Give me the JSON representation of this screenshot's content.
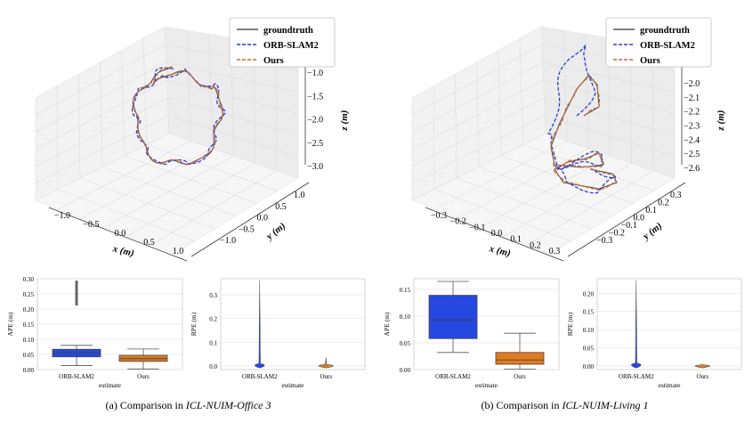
{
  "chart_data": [
    {
      "id": "a",
      "caption_prefix": "(a) Comparison in ",
      "caption_dataset": "ICL-NUIM-Office 3",
      "trajectory": {
        "type": "line3d",
        "legend": [
          "groundtruth",
          "ORB-SLAM2",
          "Ours"
        ],
        "xlabel": "x (m)",
        "ylabel": "y (m)",
        "zlabel": "z (m)",
        "xticks": [
          "−1.0",
          "−0.5",
          "0.0",
          "0.5",
          "1.0"
        ],
        "yticks": [
          "−1.0",
          "−0.5",
          "0.0",
          "0.5",
          "1.0"
        ],
        "zticks": [
          "−1.0",
          "−1.5",
          "−2.0",
          "−2.5",
          "−3.0"
        ]
      },
      "ape": {
        "type": "boxplot",
        "ylabel": "APE (m)",
        "xlabel": "estimate",
        "categories": [
          "ORB-SLAM2",
          "Ours"
        ],
        "yticks": [
          "0.00",
          "0.05",
          "0.10",
          "0.15",
          "0.20",
          "0.25",
          "0.30"
        ],
        "ylim": [
          0,
          0.3
        ],
        "boxes": [
          {
            "name": "ORB-SLAM2",
            "whislo": 0.013,
            "q1": 0.042,
            "med": 0.055,
            "q3": 0.067,
            "whishi": 0.08,
            "outliers": [
              0.215,
              0.29
            ]
          },
          {
            "name": "Ours",
            "whislo": 0.002,
            "q1": 0.027,
            "med": 0.036,
            "q3": 0.047,
            "whishi": 0.068,
            "outliers": []
          }
        ]
      },
      "rpe": {
        "type": "violin",
        "ylabel": "RPE (m)",
        "xlabel": "estimate",
        "categories": [
          "ORB-SLAM2",
          "Ours"
        ],
        "yticks": [
          "0.0",
          "0.1",
          "0.2",
          "0.3"
        ],
        "ylim": [
          0,
          0.36
        ],
        "violins": [
          {
            "name": "ORB-SLAM2",
            "max": 0.36,
            "body": 0.01
          },
          {
            "name": "Ours",
            "max": 0.035,
            "body": 0.006
          }
        ]
      }
    },
    {
      "id": "b",
      "caption_prefix": "(b) Comparison in ",
      "caption_dataset": "ICL-NUIM-Living 1",
      "trajectory": {
        "type": "line3d",
        "legend": [
          "groundtruth",
          "ORB-SLAM2",
          "Ours"
        ],
        "xlabel": "x (m)",
        "ylabel": "y (m)",
        "zlabel": "z (m)",
        "xticks": [
          "−0.3",
          "−0.2",
          "−0.1",
          "0.0",
          "0.1",
          "0.2",
          "0.3"
        ],
        "yticks": [
          "−0.3",
          "−0.2",
          "−0.1",
          "0.0",
          "0.1",
          "0.2",
          "0.3"
        ],
        "zticks": [
          "−2.0",
          "−2.1",
          "−2.2",
          "−2.3",
          "−2.4",
          "−2.5",
          "−2.6"
        ]
      },
      "ape": {
        "type": "boxplot",
        "ylabel": "APE (m)",
        "xlabel": "estimate",
        "categories": [
          "ORB-SLAM2",
          "Ours"
        ],
        "yticks": [
          "0.00",
          "0.05",
          "0.10",
          "0.15"
        ],
        "ylim": [
          0,
          0.17
        ],
        "boxes": [
          {
            "name": "ORB-SLAM2",
            "whislo": 0.032,
            "q1": 0.058,
            "med": 0.093,
            "q3": 0.139,
            "whishi": 0.165,
            "outliers": []
          },
          {
            "name": "Ours",
            "whislo": 0.001,
            "q1": 0.01,
            "med": 0.018,
            "q3": 0.032,
            "whishi": 0.068,
            "outliers": []
          }
        ]
      },
      "rpe": {
        "type": "violin",
        "ylabel": "RPE (m)",
        "xlabel": "estimate",
        "categories": [
          "ORB-SLAM2",
          "Ours"
        ],
        "yticks": [
          "0.00",
          "0.05",
          "0.10",
          "0.15",
          "0.20"
        ],
        "ylim": [
          0,
          0.235
        ],
        "violins": [
          {
            "name": "ORB-SLAM2",
            "max": 0.235,
            "body": 0.008
          },
          {
            "name": "Ours",
            "max": 0.006,
            "body": 0.003
          }
        ]
      }
    }
  ],
  "colors": {
    "groundtruth": "#555555",
    "orbslam": "#2a3fcf",
    "ours": "#d06a2c",
    "box_blue": "#2548e0",
    "box_orange": "#e07b1f"
  }
}
